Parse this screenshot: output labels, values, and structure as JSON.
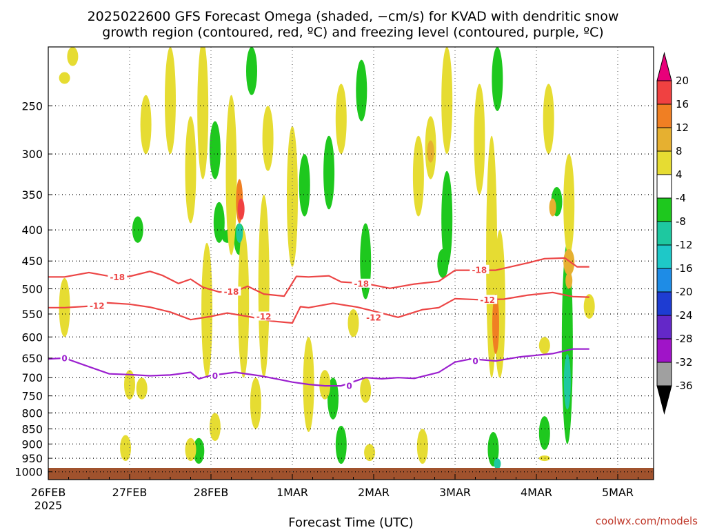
{
  "chart_data": {
    "type": "heatmap",
    "title_line1": "2025022600 GFS Forecast Omega (shaded, −cm/s) for KVAD with dendritic snow",
    "title_line2": "growth region (contoured, red, ºC) and freezing level (contoured, purple, ºC)",
    "xlabel": "Forecast Time (UTC)",
    "ylabel": "",
    "credit": "coolwx.com/models",
    "x_ticks": [
      "26FEB",
      "27FEB",
      "28FEB",
      "1MAR",
      "2MAR",
      "3MAR",
      "4MAR",
      "5MAR"
    ],
    "x_year": "2025",
    "x_range_days": [
      0,
      6.65
    ],
    "y_ticks": [
      250,
      300,
      350,
      400,
      450,
      500,
      550,
      600,
      650,
      700,
      750,
      800,
      850,
      900,
      950,
      1000
    ],
    "y_range": [
      1030,
      200
    ],
    "y_scale": "log",
    "grid": true,
    "colorbar": {
      "levels": [
        20,
        16,
        12,
        8,
        4,
        -4,
        -8,
        -12,
        -16,
        -20,
        -24,
        -28,
        -32,
        -36
      ],
      "colors": [
        "#e8007a",
        "#f04141",
        "#f07f23",
        "#e6b030",
        "#e6dc32",
        "#ffffff",
        "#1ec81e",
        "#1ec8a0",
        "#1ec8c8",
        "#1e8ce6",
        "#1e3cd2",
        "#6428c8",
        "#a014c8",
        "#a0a0a0",
        "#000000"
      ]
    },
    "series": [
      {
        "name": "-18",
        "color": "#ec4545",
        "x": [
          0.0,
          0.2,
          0.5,
          0.8,
          1.0,
          1.25,
          1.4,
          1.6,
          1.75,
          1.9,
          2.1,
          2.3,
          2.45,
          2.65,
          2.9,
          3.05,
          3.2,
          3.45,
          3.6,
          3.9,
          4.2,
          4.5,
          4.8,
          5.0,
          5.5,
          5.9,
          6.1,
          6.35,
          6.5,
          6.65
        ],
        "y": [
          478,
          478,
          470,
          478,
          477,
          468,
          475,
          490,
          482,
          497,
          506,
          505,
          495,
          510,
          514,
          477,
          478,
          476,
          487,
          490,
          499,
          491,
          486,
          466,
          466,
          453,
          446,
          445,
          460,
          460
        ]
      },
      {
        "name": "-12",
        "color": "#ec4545",
        "x": [
          0.0,
          0.2,
          0.5,
          0.7,
          1.0,
          1.25,
          1.5,
          1.75,
          2.0,
          2.2,
          2.45,
          2.75,
          3.0,
          3.1,
          3.2,
          3.5,
          3.8,
          4.0,
          4.3,
          4.6,
          4.8,
          5.0,
          5.3,
          5.6,
          5.9,
          6.2,
          6.45,
          6.65
        ],
        "y": [
          537,
          537,
          534,
          527,
          530,
          536,
          546,
          562,
          555,
          548,
          555,
          565,
          569,
          535,
          537,
          528,
          536,
          544,
          557,
          541,
          537,
          519,
          521,
          520,
          512,
          507,
          515,
          516
        ]
      },
      {
        "name": "0",
        "color": "#9b1fcf",
        "x": [
          0.0,
          0.2,
          0.45,
          0.75,
          1.0,
          1.25,
          1.5,
          1.75,
          1.85,
          2.0,
          2.3,
          2.6,
          2.8,
          3.0,
          3.2,
          3.4,
          3.6,
          3.9,
          4.1,
          4.3,
          4.5,
          4.8,
          5.0,
          5.2,
          5.5,
          5.8,
          6.0,
          6.2,
          6.45,
          6.65
        ],
        "y": [
          652,
          650,
          668,
          690,
          692,
          695,
          693,
          686,
          703,
          694,
          686,
          695,
          703,
          712,
          718,
          722,
          722,
          700,
          703,
          700,
          702,
          686,
          660,
          652,
          657,
          647,
          643,
          639,
          628,
          628
        ]
      }
    ],
    "contour_labels": [
      {
        "text": "-18",
        "x": 0.85,
        "y": 478
      },
      {
        "text": "-18",
        "x": 2.25,
        "y": 505
      },
      {
        "text": "-18",
        "x": 3.85,
        "y": 490
      },
      {
        "text": "-18",
        "x": 5.3,
        "y": 465
      },
      {
        "text": "-12",
        "x": 0.6,
        "y": 533
      },
      {
        "text": "-12",
        "x": 2.65,
        "y": 555
      },
      {
        "text": "-12",
        "x": 4.0,
        "y": 557
      },
      {
        "text": "-12",
        "x": 5.4,
        "y": 521
      },
      {
        "text": "0",
        "x": 0.2,
        "y": 650
      },
      {
        "text": "0",
        "x": 2.05,
        "y": 695
      },
      {
        "text": "0",
        "x": 3.7,
        "y": 722
      },
      {
        "text": "0",
        "x": 5.25,
        "y": 657
      }
    ],
    "regions": [
      {
        "x": 2.35,
        "p0": 330,
        "p1": 390,
        "v": 12
      },
      {
        "x": 2.37,
        "p0": 355,
        "p1": 385,
        "v": 16
      },
      {
        "x": 4.7,
        "p0": 285,
        "p1": 310,
        "v": 10
      },
      {
        "x": 6.2,
        "p0": 355,
        "p1": 380,
        "v": 10
      },
      {
        "x": 6.4,
        "p0": 470,
        "p1": 500,
        "v": 10
      },
      {
        "x": 6.4,
        "p0": 430,
        "p1": 475,
        "v": 9
      },
      {
        "x": 5.5,
        "p0": 510,
        "p1": 640,
        "v": 12
      },
      {
        "x": 2.35,
        "p0": 390,
        "p1": 420,
        "v": -12
      },
      {
        "x": 5.52,
        "p0": 950,
        "p1": 990,
        "v": -12
      },
      {
        "x": 6.38,
        "p0": 640,
        "p1": 790,
        "v": -12
      },
      {
        "x": 5.52,
        "p0": 200,
        "p1": 255,
        "v": -6
      },
      {
        "x": 5.47,
        "p0": 860,
        "p1": 980,
        "v": -6
      },
      {
        "x": 6.38,
        "p0": 420,
        "p1": 900,
        "v": -6
      },
      {
        "x": 2.05,
        "p0": 265,
        "p1": 330,
        "v": -6
      },
      {
        "x": 2.1,
        "p0": 360,
        "p1": 420,
        "v": -6
      },
      {
        "x": 2.35,
        "p0": 390,
        "p1": 440,
        "v": -6
      },
      {
        "x": 2.5,
        "p0": 200,
        "p1": 240,
        "v": -6
      },
      {
        "x": 3.5,
        "p0": 700,
        "p1": 820,
        "v": -6
      },
      {
        "x": 3.6,
        "p0": 840,
        "p1": 970,
        "v": -6
      },
      {
        "x": 3.45,
        "p0": 280,
        "p1": 370,
        "v": -6
      },
      {
        "x": 3.15,
        "p0": 300,
        "p1": 380,
        "v": -6
      },
      {
        "x": 3.9,
        "p0": 390,
        "p1": 520,
        "v": -6
      },
      {
        "x": 1.1,
        "p0": 380,
        "p1": 420,
        "v": -6
      },
      {
        "x": 1.85,
        "p0": 880,
        "p1": 970,
        "v": -6
      },
      {
        "x": 4.85,
        "p0": 430,
        "p1": 480,
        "v": -6
      },
      {
        "x": 4.9,
        "p0": 320,
        "p1": 460,
        "v": -6
      },
      {
        "x": 3.85,
        "p0": 210,
        "p1": 265,
        "v": -6
      },
      {
        "x": 6.1,
        "p0": 810,
        "p1": 920,
        "v": -6
      },
      {
        "x": 6.25,
        "p0": 340,
        "p1": 380,
        "v": -6
      },
      {
        "x": 2.2,
        "p0": 400,
        "p1": 420,
        "v": -6
      },
      {
        "x": 1.9,
        "p0": 195,
        "p1": 330,
        "v": 6
      },
      {
        "x": 1.75,
        "p0": 260,
        "p1": 390,
        "v": 6
      },
      {
        "x": 1.5,
        "p0": 200,
        "p1": 300,
        "v": 6
      },
      {
        "x": 0.3,
        "p0": 200,
        "p1": 215,
        "v": 6
      },
      {
        "x": 1.2,
        "p0": 240,
        "p1": 300,
        "v": 6
      },
      {
        "x": 2.25,
        "p0": 240,
        "p1": 440,
        "v": 6
      },
      {
        "x": 2.4,
        "p0": 400,
        "p1": 700,
        "v": 6
      },
      {
        "x": 2.7,
        "p0": 250,
        "p1": 320,
        "v": 6
      },
      {
        "x": 2.65,
        "p0": 350,
        "p1": 700,
        "v": 6
      },
      {
        "x": 2.55,
        "p0": 700,
        "p1": 850,
        "v": 6
      },
      {
        "x": 1.95,
        "p0": 420,
        "p1": 700,
        "v": 6
      },
      {
        "x": 1.15,
        "p0": 700,
        "p1": 760,
        "v": 6
      },
      {
        "x": 0.95,
        "p0": 870,
        "p1": 960,
        "v": 6
      },
      {
        "x": 1.0,
        "p0": 680,
        "p1": 760,
        "v": 6
      },
      {
        "x": 3.0,
        "p0": 270,
        "p1": 460,
        "v": 6
      },
      {
        "x": 3.6,
        "p0": 230,
        "p1": 300,
        "v": 6
      },
      {
        "x": 4.55,
        "p0": 280,
        "p1": 380,
        "v": 6
      },
      {
        "x": 4.7,
        "p0": 260,
        "p1": 330,
        "v": 6
      },
      {
        "x": 4.9,
        "p0": 200,
        "p1": 300,
        "v": 6
      },
      {
        "x": 5.3,
        "p0": 230,
        "p1": 350,
        "v": 6
      },
      {
        "x": 5.45,
        "p0": 280,
        "p1": 700,
        "v": 6
      },
      {
        "x": 5.55,
        "p0": 400,
        "p1": 700,
        "v": 6
      },
      {
        "x": 6.15,
        "p0": 230,
        "p1": 300,
        "v": 6
      },
      {
        "x": 6.4,
        "p0": 300,
        "p1": 440,
        "v": 6
      },
      {
        "x": 6.65,
        "p0": 510,
        "p1": 560,
        "v": 6
      },
      {
        "x": 3.95,
        "p0": 900,
        "p1": 960,
        "v": 6
      },
      {
        "x": 3.75,
        "p0": 540,
        "p1": 600,
        "v": 6
      },
      {
        "x": 3.9,
        "p0": 700,
        "p1": 770,
        "v": 6
      },
      {
        "x": 6.1,
        "p0": 600,
        "p1": 640,
        "v": 6
      },
      {
        "x": 6.1,
        "p0": 940,
        "p1": 960,
        "v": 6
      },
      {
        "x": 4.6,
        "p0": 850,
        "p1": 970,
        "v": 6
      },
      {
        "x": 3.2,
        "p0": 600,
        "p1": 860,
        "v": 6
      },
      {
        "x": 3.4,
        "p0": 680,
        "p1": 760,
        "v": 6
      },
      {
        "x": 0.2,
        "p0": 480,
        "p1": 600,
        "v": 6
      },
      {
        "x": 0.2,
        "p0": 220,
        "p1": 230,
        "v": 6
      },
      {
        "x": 1.75,
        "p0": 880,
        "p1": 960,
        "v": 6
      },
      {
        "x": 2.05,
        "p0": 800,
        "p1": 890,
        "v": 6
      }
    ]
  }
}
